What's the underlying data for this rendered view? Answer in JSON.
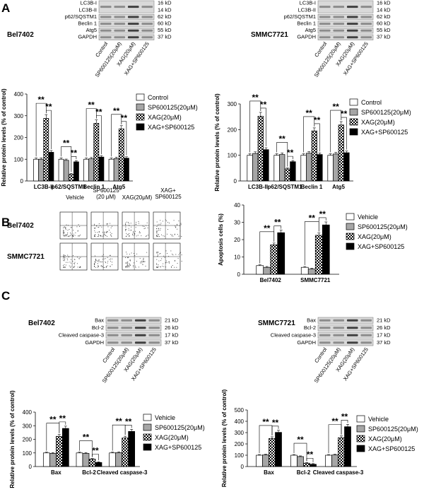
{
  "panels": {
    "A": {
      "letter": "A",
      "left": {
        "cell_line": "Bel7402",
        "blot_labels": [
          "LC3B-I",
          "LC3B-II",
          "p62/SQSTM1",
          "Beclin 1",
          "Atg5",
          "GAPDH"
        ],
        "kd_labels": [
          "16 kD",
          "14 kD",
          "62 kD",
          "60 kD",
          "55 kD",
          "37 kD"
        ],
        "lane_labels": [
          "Control",
          "SP600125(20μM)",
          "XAG(20μM)",
          "XAG+SP600125"
        ]
      },
      "right": {
        "cell_line": "SMMC7721",
        "blot_labels": [
          "LC3B-I",
          "LC3B-II",
          "p62/SQSTM1",
          "Beclin 1",
          "Atg5",
          "GAPDH"
        ],
        "kd_labels": [
          "16 kD",
          "14 kD",
          "62 kD",
          "60 kD",
          "55 kD",
          "37 kD"
        ],
        "lane_labels": [
          "Control",
          "SP600125(20μM)",
          "XAG(20μM)",
          "XAG+SP600125"
        ]
      }
    },
    "B": {
      "letter": "B",
      "column_headers": [
        "Vehicle",
        "SP600125\n(20 μM)",
        "XAG(20μM)",
        "XAG+\nSP600125"
      ],
      "row_labels": [
        "Bel7402",
        "SMMC7721"
      ]
    },
    "C": {
      "letter": "C",
      "left": {
        "cell_line": "Bel7402",
        "blot_labels": [
          "Bax",
          "Bcl-2",
          "Cleaved caspase-3",
          "GAPDH"
        ],
        "kd_labels": [
          "21 kD",
          "26 kD",
          "17 kD",
          "37 kD"
        ],
        "lane_labels": [
          "Control",
          "SP600125(20μM)",
          "XAG(20μM)",
          "XAG+SP600125"
        ]
      },
      "right": {
        "cell_line": "SMMC7721",
        "blot_labels": [
          "Bax",
          "Bcl-2",
          "Cleaved caspase-3",
          "GAPDH"
        ],
        "kd_labels": [
          "21 kD",
          "26 kD",
          "17 kD",
          "37 kD"
        ],
        "lane_labels": [
          "Control",
          "SP600125(20μM)",
          "XAG(20μM)",
          "XAG+SP600125"
        ]
      }
    }
  },
  "chart_data": [
    {
      "id": "A-left",
      "type": "bar",
      "categories": [
        "LC3B-II",
        "p62/SQSTM1",
        "Beclin 1",
        "Atg5"
      ],
      "ylabel": "Relative protein levels (% of control)",
      "ylim": [
        0,
        400
      ],
      "yticks": [
        0,
        100,
        200,
        300,
        400
      ],
      "series": [
        {
          "name": "Control",
          "values": [
            100,
            100,
            100,
            100
          ]
        },
        {
          "name": "SP600125(20μM)",
          "values": [
            100,
            95,
            102,
            103
          ]
        },
        {
          "name": "XAG(20μM)",
          "values": [
            288,
            30,
            265,
            240
          ]
        },
        {
          "name": "XAG+SP600125",
          "values": [
            132,
            88,
            110,
            105
          ]
        }
      ],
      "significance": "**"
    },
    {
      "id": "A-right",
      "type": "bar",
      "categories": [
        "LC3B-II",
        "p62/SQSTM1",
        "Beclin 1",
        "Atg5"
      ],
      "ylabel": "Relative protein levels (% of control)",
      "ylim": [
        0,
        300
      ],
      "yticks": [
        0,
        100,
        200,
        300
      ],
      "series": [
        {
          "name": "Control",
          "values": [
            100,
            100,
            100,
            100
          ]
        },
        {
          "name": "SP600125(20μM)",
          "values": [
            107,
            103,
            108,
            105
          ]
        },
        {
          "name": "XAG(20μM)",
          "values": [
            252,
            47,
            195,
            218
          ]
        },
        {
          "name": "XAG+SP600125",
          "values": [
            122,
            75,
            103,
            110
          ]
        }
      ],
      "significance": "**"
    },
    {
      "id": "B",
      "type": "bar",
      "categories": [
        "Bel7402",
        "SMMC7721"
      ],
      "ylabel": "Apoptosis cells (%)",
      "ylim": [
        0,
        40
      ],
      "yticks": [
        0,
        10,
        20,
        30,
        40
      ],
      "series": [
        {
          "name": "Vehicle",
          "values": [
            5,
            4
          ]
        },
        {
          "name": "SP600125(20μM)",
          "values": [
            4,
            3
          ]
        },
        {
          "name": "XAG(20μM)",
          "values": [
            17,
            22.5
          ]
        },
        {
          "name": "XAG+SP600125",
          "values": [
            24,
            28.5
          ]
        }
      ],
      "significance": "**"
    },
    {
      "id": "C-left",
      "type": "bar",
      "categories": [
        "Bax",
        "Bcl-2",
        "Cleaved caspase-3"
      ],
      "ylabel": "Relative protein levels (% of control)",
      "ylim": [
        0,
        400
      ],
      "yticks": [
        0,
        100,
        200,
        300,
        400
      ],
      "series": [
        {
          "name": "Vehicle",
          "values": [
            100,
            100,
            100
          ]
        },
        {
          "name": "SP600125(20μM)",
          "values": [
            97,
            97,
            102
          ]
        },
        {
          "name": "XAG(20μM)",
          "values": [
            222,
            55,
            210
          ]
        },
        {
          "name": "XAG+SP600125",
          "values": [
            280,
            30,
            258
          ]
        }
      ],
      "significance": "**"
    },
    {
      "id": "C-right",
      "type": "bar",
      "categories": [
        "Bax",
        "Bcl-2",
        "Cleaved caspase-3"
      ],
      "ylabel": "Relative protein levels (% of control)",
      "ylim": [
        0,
        500
      ],
      "yticks": [
        0,
        100,
        200,
        300,
        400,
        500
      ],
      "series": [
        {
          "name": "Vehicle",
          "values": [
            100,
            100,
            100
          ]
        },
        {
          "name": "SP600125(20μM)",
          "values": [
            103,
            88,
            102
          ]
        },
        {
          "name": "XAG(20μM)",
          "values": [
            248,
            30,
            255
          ]
        },
        {
          "name": "XAG+SP600125",
          "values": [
            302,
            20,
            352
          ]
        }
      ],
      "significance": "**"
    }
  ]
}
